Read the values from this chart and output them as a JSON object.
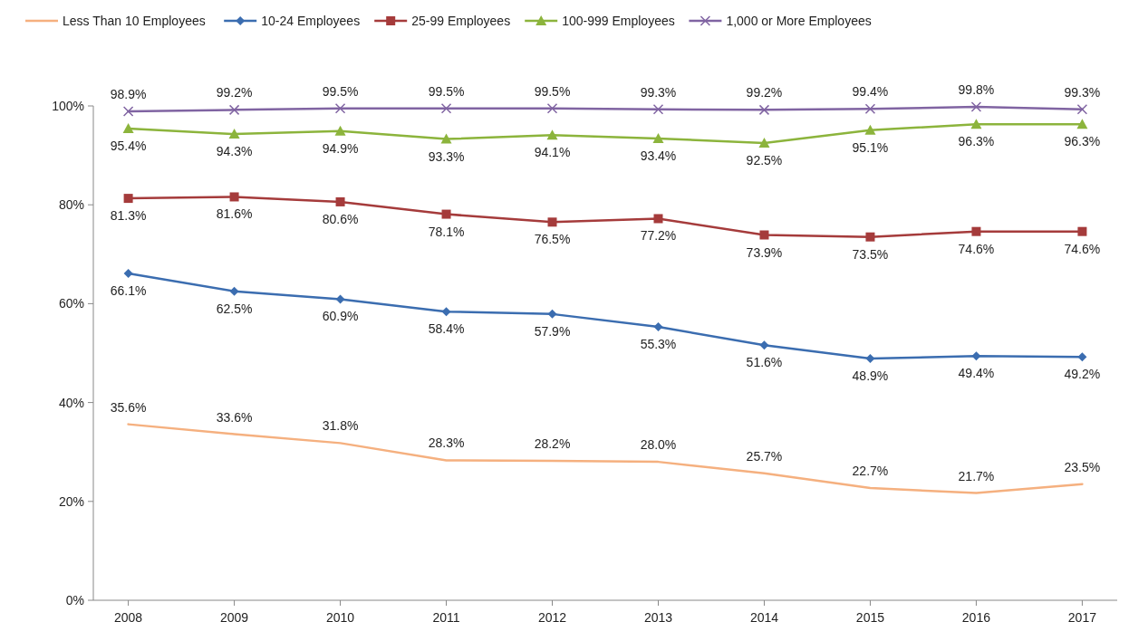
{
  "chart_data": {
    "type": "line",
    "categories": [
      "2008",
      "2009",
      "2010",
      "2011",
      "2012",
      "2013",
      "2014",
      "2015",
      "2016",
      "2017"
    ],
    "ylim": [
      0,
      100
    ],
    "yticks": [
      {
        "value": 0,
        "label": "0%"
      },
      {
        "value": 20,
        "label": "20%"
      },
      {
        "value": 40,
        "label": "40%"
      },
      {
        "value": 60,
        "label": "60%"
      },
      {
        "value": 80,
        "label": "80%"
      },
      {
        "value": 100,
        "label": "100%"
      }
    ],
    "grid": false,
    "legend": "top",
    "line_style": "solid",
    "series": [
      {
        "name": "Less Than 10 Employees",
        "color": "#f5b07f",
        "marker": "none",
        "values": [
          35.6,
          33.6,
          31.8,
          28.3,
          28.2,
          28.0,
          25.7,
          22.7,
          21.7,
          23.5
        ],
        "value_labels": [
          "35.6%",
          "33.6%",
          "31.8%",
          "28.3%",
          "28.2%",
          "28.0%",
          "25.7%",
          "22.7%",
          "21.7%",
          "23.5%"
        ]
      },
      {
        "name": "10-24 Employees",
        "color": "#3b6db0",
        "marker": "diamond",
        "values": [
          66.1,
          62.5,
          60.9,
          58.4,
          57.9,
          55.3,
          51.6,
          48.9,
          49.4,
          49.2
        ],
        "value_labels": [
          "66.1%",
          "62.5%",
          "60.9%",
          "58.4%",
          "57.9%",
          "55.3%",
          "51.6%",
          "48.9%",
          "49.4%",
          "49.2%"
        ]
      },
      {
        "name": "25-99 Employees",
        "color": "#a53b3b",
        "marker": "square",
        "values": [
          81.3,
          81.6,
          80.6,
          78.1,
          76.5,
          77.2,
          73.9,
          73.5,
          74.6,
          74.6
        ],
        "value_labels": [
          "81.3%",
          "81.6%",
          "80.6%",
          "78.1%",
          "76.5%",
          "77.2%",
          "73.9%",
          "73.5%",
          "74.6%",
          "74.6%"
        ]
      },
      {
        "name": "100-999 Employees",
        "color": "#8cb43c",
        "marker": "triangle",
        "values": [
          95.4,
          94.3,
          94.9,
          93.3,
          94.1,
          93.4,
          92.5,
          95.1,
          96.3,
          96.3
        ],
        "value_labels": [
          "95.4%",
          "94.3%",
          "94.9%",
          "93.3%",
          "94.1%",
          "93.4%",
          "92.5%",
          "95.1%",
          "96.3%",
          "96.3%"
        ]
      },
      {
        "name": "1,000 or More Employees",
        "color": "#8064a2",
        "marker": "cross",
        "values": [
          98.9,
          99.2,
          99.5,
          99.5,
          99.5,
          99.3,
          99.2,
          99.4,
          99.8,
          99.3
        ],
        "value_labels": [
          "98.9%",
          "99.2%",
          "99.5%",
          "99.5%",
          "99.5%",
          "99.3%",
          "99.2%",
          "99.4%",
          "99.8%",
          "99.3%"
        ]
      }
    ]
  }
}
